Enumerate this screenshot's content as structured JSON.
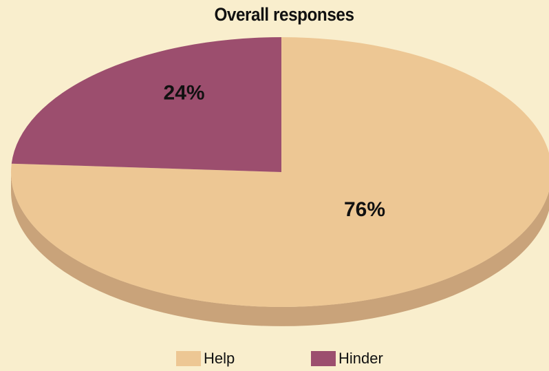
{
  "chart_data": {
    "type": "pie",
    "title": "Overall responses",
    "slices": [
      {
        "label": "Help",
        "value": 76,
        "display": "76%",
        "color": "#edc794",
        "side_color": "#c9a37a"
      },
      {
        "label": "Hinder",
        "value": 24,
        "display": "24%",
        "color": "#9c4e6e",
        "side_color": "#7a3a55"
      }
    ],
    "legend_position": "bottom",
    "background_color": "#f9eecd"
  }
}
